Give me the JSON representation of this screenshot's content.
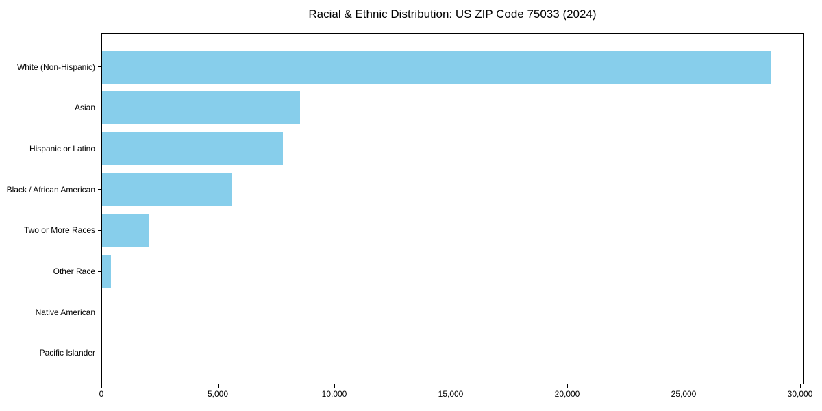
{
  "title": "Racial & Ethnic Distribution: US ZIP Code 75033 (2024)",
  "chart_data": {
    "type": "bar",
    "orientation": "horizontal",
    "title": "Racial & Ethnic Distribution: US ZIP Code 75033 (2024)",
    "categories": [
      "White (Non-Hispanic)",
      "Asian",
      "Hispanic or Latino",
      "Black / African American",
      "Two or More Races",
      "Other Race",
      "Native American",
      "Pacific Islander"
    ],
    "values": [
      28700,
      8500,
      7750,
      5550,
      2000,
      370,
      0,
      0
    ],
    "xlabel": "",
    "ylabel": "",
    "xlim": [
      0,
      30150
    ],
    "x_ticks": [
      0,
      5000,
      10000,
      15000,
      20000,
      25000,
      30000
    ],
    "x_tick_labels": [
      "0",
      "5,000",
      "10,000",
      "15,000",
      "20,000",
      "25,000",
      "30,000"
    ],
    "bar_color": "#87CEEB",
    "axis_color": "#000000",
    "background_color": "#ffffff",
    "grid": false,
    "legend": null
  }
}
